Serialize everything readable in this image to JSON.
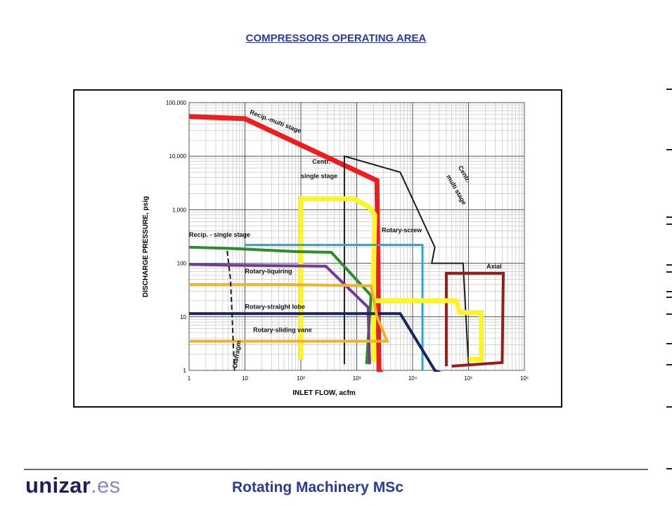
{
  "slide": {
    "title": "COMPRESSORS OPERATING AREA",
    "brand_main": "unizar",
    "brand_suffix": ".es",
    "course": "Rotating Machinery MSc"
  },
  "chart_data": {
    "type": "area",
    "xlabel": "INLET FLOW, acfm",
    "ylabel": "DISCHARGE PRESSURE, psig",
    "xscale": "log",
    "yscale": "log",
    "xlim": [
      1,
      1000000
    ],
    "ylim": [
      1,
      100000
    ],
    "grid": true,
    "x_ticks": [
      {
        "value": 1,
        "label": "1"
      },
      {
        "value": 10,
        "label": "10"
      },
      {
        "value": 100,
        "label": "10²"
      },
      {
        "value": 1000,
        "label": "10³"
      },
      {
        "value": 10000,
        "label": "10⁴"
      },
      {
        "value": 100000,
        "label": "10⁵"
      },
      {
        "value": 1000000,
        "label": "10⁶"
      }
    ],
    "y_ticks": [
      {
        "value": 1,
        "label": "1"
      },
      {
        "value": 10,
        "label": "10"
      },
      {
        "value": 100,
        "label": "100"
      },
      {
        "value": 1000,
        "label": "1,000"
      },
      {
        "value": 10000,
        "label": "10,000"
      },
      {
        "value": 100000,
        "label": "100,000"
      }
    ],
    "series": [
      {
        "name": "Recip.-multi stage",
        "color": "#ee1c1c",
        "width": 7,
        "dash": "",
        "points": [
          [
            1,
            55000
          ],
          [
            10,
            50000
          ],
          [
            2300,
            3500
          ],
          [
            2500,
            1
          ],
          [
            3000,
            0.8
          ]
        ]
      },
      {
        "name": "Centr. multi stage",
        "color": "#1a1a1a",
        "width": 2,
        "dash": "",
        "points": [
          [
            600,
            1.3
          ],
          [
            600,
            10000
          ],
          [
            6000,
            5000
          ],
          [
            25000,
            200
          ],
          [
            22000,
            100
          ],
          [
            80000,
            100
          ],
          [
            100000,
            1.3
          ]
        ]
      },
      {
        "name": "Centr. single stage",
        "color": "#fff42a",
        "width": 7,
        "dash": "",
        "points": [
          [
            1600,
            1.6
          ],
          [
            2000,
            1.6
          ],
          [
            2000,
            70
          ],
          [
            2100,
            800
          ],
          [
            1700,
            1100
          ],
          [
            900,
            1600
          ],
          [
            100,
            1600
          ],
          [
            100,
            1.6
          ]
        ]
      },
      {
        "name": "Rotary-screw",
        "color": "#29a6dc",
        "width": 3,
        "dash": "",
        "points": [
          [
            10,
            220
          ],
          [
            15000,
            220
          ],
          [
            15000,
            1
          ]
        ]
      },
      {
        "name": "Recip. - single stage",
        "color": "#2e8b2e",
        "width": 4,
        "dash": "",
        "points": [
          [
            1,
            200
          ],
          [
            5,
            190
          ],
          [
            15,
            180
          ],
          [
            80,
            165
          ],
          [
            350,
            160
          ],
          [
            1800,
            25
          ],
          [
            1500,
            1.3
          ]
        ]
      },
      {
        "name": "Rotary-liquiring",
        "color": "#6f3b9c",
        "width": 4,
        "dash": "",
        "points": [
          [
            1,
            95
          ],
          [
            5,
            92
          ],
          [
            280,
            88
          ],
          [
            1600,
            15
          ],
          [
            1700,
            1.3
          ]
        ]
      },
      {
        "name": "Rotary-straight lobe",
        "color": "#16245f",
        "width": 4,
        "dash": "",
        "points": [
          [
            1,
            11.5
          ],
          [
            6000,
            11.5
          ],
          [
            25000,
            1
          ],
          [
            40000,
            0.8
          ]
        ]
      },
      {
        "name": "Rotary-sliding vane",
        "color": "#f2b12b",
        "width": 4,
        "dash": "",
        "points": [
          [
            1,
            40
          ],
          [
            50,
            40
          ],
          [
            1800,
            38
          ],
          [
            2300,
            10
          ],
          [
            3500,
            3.5
          ],
          [
            1,
            3.5
          ]
        ]
      },
      {
        "name": "Diafragm",
        "color": "#1a1a1a",
        "width": 2,
        "dash": "7,4",
        "points": [
          [
            4.8,
            170
          ],
          [
            5.5,
            50
          ],
          [
            6.5,
            1
          ]
        ]
      },
      {
        "name": "Axial",
        "color": "#9b1b1b",
        "width": 4,
        "dash": "",
        "points": [
          [
            50000,
            1.2
          ],
          [
            400000,
            1.4
          ],
          [
            420000,
            65
          ],
          [
            40000,
            65
          ],
          [
            40000,
            1.2
          ]
        ]
      },
      {
        "name": "Centr. single stage",
        "color": "#fff42a",
        "width": 7,
        "dash": "",
        "points": [
          [
            2200,
            20
          ],
          [
            60000,
            20
          ],
          [
            70000,
            12
          ],
          [
            170000,
            12
          ],
          [
            170000,
            1.6
          ],
          [
            100000,
            1.6
          ]
        ]
      }
    ],
    "annotations": [
      {
        "text": "Recip.-multi stage",
        "x": 12,
        "y": 62000,
        "rotate": 21
      },
      {
        "text": "Centr.",
        "x": 160,
        "y": 7200,
        "rotate": 0
      },
      {
        "text": "single stage",
        "x": 100,
        "y": 3900,
        "rotate": 0
      },
      {
        "text": "Rotary-screw",
        "x": 2800,
        "y": 380,
        "rotate": 0
      },
      {
        "text": "Centr.",
        "x": 65000,
        "y": 6200,
        "rotate": 60
      },
      {
        "text": "multi stage",
        "x": 40000,
        "y": 4200,
        "rotate": 60
      },
      {
        "text": "Axial",
        "x": 210000,
        "y": 80,
        "rotate": 0
      },
      {
        "text": "Recip. - single stage",
        "x": 1,
        "y": 310,
        "rotate": 0
      },
      {
        "text": "Rotary-liquiring",
        "x": 10,
        "y": 65,
        "rotate": 0
      },
      {
        "text": "Rotary-straight lobe",
        "x": 10,
        "y": 14,
        "rotate": 0
      },
      {
        "text": "Rotary-sliding vane",
        "x": 14,
        "y": 5.2,
        "rotate": 0
      },
      {
        "text": "Diafragm",
        "x": 7.2,
        "y": 1.1,
        "rotate": -82
      }
    ]
  }
}
